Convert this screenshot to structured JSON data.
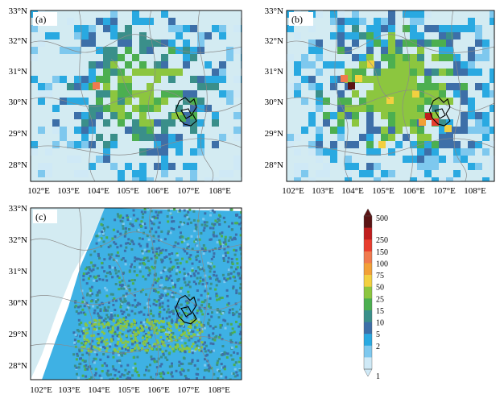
{
  "panels": [
    {
      "label": "(a)"
    },
    {
      "label": "(b)"
    },
    {
      "label": "(c)"
    }
  ],
  "axes": {
    "lat_ticks": [
      "33°N",
      "32°N",
      "31°N",
      "30°N",
      "29°N",
      "28°N"
    ],
    "lon_ticks": [
      "102°E",
      "103°E",
      "104°E",
      "105°E",
      "106°E",
      "107°E",
      "108°E"
    ]
  },
  "colorbar": {
    "labels": [
      "500",
      "250",
      "150",
      "100",
      "75",
      "50",
      "25",
      "15",
      "10",
      "5",
      "2",
      "1"
    ],
    "colors": [
      "#5b1414",
      "#c01e1e",
      "#e83d2e",
      "#f07a4e",
      "#f2a037",
      "#f2d040",
      "#8cc63f",
      "#4caf50",
      "#3a8f8a",
      "#3d6fa8",
      "#29a9e1",
      "#7ec8ee",
      "#cfe9f6"
    ]
  }
}
